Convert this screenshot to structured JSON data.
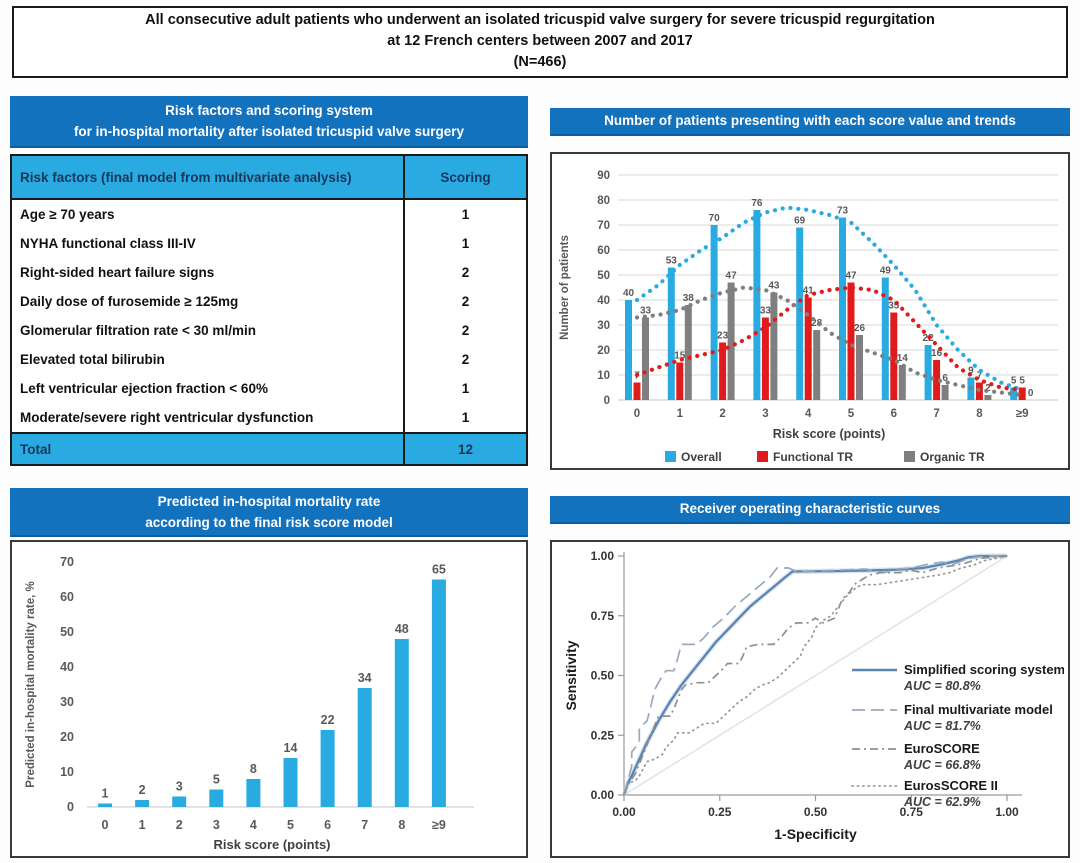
{
  "banner": {
    "line1": "All consecutive adult patients who underwent an isolated tricuspid valve surgery for severe tricuspid regurgitation",
    "line2": "at 12 French centers between 2007 and 2017",
    "line3": "(N=466)"
  },
  "risk_table": {
    "title_line1": "Risk factors  and scoring system",
    "title_line2": "for in-hospital mortality after isolated tricuspid valve surgery",
    "col1_header": "Risk factors (final model from multivariate analysis)",
    "col2_header": "Scoring",
    "rows": [
      {
        "factor": "Age ≥ 70 years",
        "score": "1"
      },
      {
        "factor": "NYHA functional class III-IV",
        "score": "1"
      },
      {
        "factor": "Right-sided heart failure signs",
        "score": "2"
      },
      {
        "factor": "Daily dose of furosemide ≥ 125mg",
        "score": "2"
      },
      {
        "factor": "Glomerular filtration rate < 30 ml/min",
        "score": "2"
      },
      {
        "factor": "Elevated total bilirubin",
        "score": "2"
      },
      {
        "factor": "Left ventricular ejection fraction < 60%",
        "score": "1"
      },
      {
        "factor": "Moderate/severe right ventricular dysfunction",
        "score": "1"
      }
    ],
    "total_label": "Total",
    "total_value": "12"
  },
  "colors": {
    "header_blue": "#1272be",
    "table_cyan": "#29abe2",
    "bar_blue": "#29abe2",
    "bar_red": "#e01b1b",
    "bar_gray": "#7f7f7f",
    "label_gray": "#595959",
    "roc_blue": "#5b84b1"
  },
  "chart_data": [
    {
      "id": "score-distribution",
      "type": "bar",
      "title": "Number of patients presenting with each score value and trends",
      "categories": [
        "0",
        "1",
        "2",
        "3",
        "4",
        "5",
        "6",
        "7",
        "8",
        "≥9"
      ],
      "series": [
        {
          "name": "Overall",
          "color": "#29abe2",
          "values": [
            40,
            53,
            70,
            76,
            69,
            73,
            49,
            22,
            9,
            5
          ],
          "trend": [
            [
              0,
              40
            ],
            [
              0.5,
              46
            ],
            [
              1,
              54
            ],
            [
              1.5,
              60
            ],
            [
              2,
              65
            ],
            [
              2.5,
              71
            ],
            [
              3,
              75
            ],
            [
              3.5,
              77
            ],
            [
              4,
              76
            ],
            [
              4.5,
              74
            ],
            [
              5,
              71
            ],
            [
              5.5,
              63
            ],
            [
              6,
              54
            ],
            [
              6.5,
              44
            ],
            [
              7,
              30
            ],
            [
              7.5,
              20
            ],
            [
              8,
              12
            ],
            [
              8.5,
              7
            ],
            [
              9,
              4
            ]
          ]
        },
        {
          "name": "Functional TR",
          "color": "#e01b1b",
          "values": [
            7,
            15,
            23,
            33,
            41,
            47,
            35,
            16,
            7,
            5
          ],
          "trend": [
            [
              0,
              10
            ],
            [
              0.5,
              13
            ],
            [
              1,
              16
            ],
            [
              1.5,
              18
            ],
            [
              2,
              20
            ],
            [
              2.5,
              24
            ],
            [
              3,
              29
            ],
            [
              3.5,
              36
            ],
            [
              4,
              42
            ],
            [
              4.5,
              44
            ],
            [
              5,
              45
            ],
            [
              5.5,
              44
            ],
            [
              6,
              40
            ],
            [
              6.5,
              31
            ],
            [
              7,
              22
            ],
            [
              7.5,
              13
            ],
            [
              8,
              8
            ],
            [
              8.5,
              5
            ],
            [
              9,
              4
            ]
          ]
        },
        {
          "name": "Organic TR",
          "color": "#7f7f7f",
          "values": [
            33,
            38,
            47,
            43,
            28,
            26,
            14,
            6,
            2,
            0
          ],
          "trend": [
            [
              0,
              33
            ],
            [
              0.5,
              34
            ],
            [
              1,
              36
            ],
            [
              1.5,
              40
            ],
            [
              2,
              43
            ],
            [
              2.5,
              45
            ],
            [
              3,
              44
            ],
            [
              3.5,
              40
            ],
            [
              4,
              34
            ],
            [
              4.5,
              27
            ],
            [
              5,
              22
            ],
            [
              5.5,
              19
            ],
            [
              6,
              16
            ],
            [
              6.5,
              11
            ],
            [
              7,
              8
            ],
            [
              7.5,
              6
            ],
            [
              8,
              4
            ],
            [
              8.5,
              3
            ],
            [
              9,
              2
            ]
          ]
        }
      ],
      "xlabel": "Risk score (points)",
      "ylabel": "Number of patients",
      "ylim": [
        0,
        90
      ],
      "ytick_step": 10,
      "grid": true,
      "legend_position": "bottom"
    },
    {
      "id": "predicted-mortality",
      "type": "bar",
      "title": "Predicted in-hospital mortality rate according to the final risk score model",
      "title_line1": "Predicted in-hospital mortality rate",
      "title_line2": "according to the final risk score model",
      "categories": [
        "0",
        "1",
        "2",
        "3",
        "4",
        "5",
        "6",
        "7",
        "8",
        "≥9"
      ],
      "values": [
        1,
        2,
        3,
        5,
        8,
        14,
        22,
        34,
        48,
        65
      ],
      "bar_color": "#29abe2",
      "xlabel": "Risk score (points)",
      "ylabel": "Predicted in-hospital mortality rate, %",
      "ylim": [
        0,
        70
      ],
      "ytick_step": 10,
      "grid": false
    },
    {
      "id": "roc-curves",
      "type": "line",
      "title": "Receiver operating characteristic curves",
      "xlabel": "1-Specificity",
      "ylabel": "Sensitivity",
      "xlim": [
        0,
        1
      ],
      "ylim": [
        0,
        1
      ],
      "tick_labels": [
        "0.00",
        "0.25",
        "0.50",
        "0.75",
        "1.00"
      ],
      "ticks": [
        0,
        0.25,
        0.5,
        0.75,
        1
      ],
      "diagonal": [
        [
          0,
          0
        ],
        [
          1,
          1
        ]
      ],
      "series": [
        {
          "name": "Simplified scoring system",
          "auc": "AUC = 80.8%",
          "style": "solid",
          "color": "#5b84b1",
          "points": [
            [
              0,
              0
            ],
            [
              0.01,
              0.05
            ],
            [
              0.02,
              0.08
            ],
            [
              0.04,
              0.15
            ],
            [
              0.06,
              0.22
            ],
            [
              0.09,
              0.31
            ],
            [
              0.12,
              0.39
            ],
            [
              0.15,
              0.46
            ],
            [
              0.18,
              0.52
            ],
            [
              0.21,
              0.58
            ],
            [
              0.24,
              0.64
            ],
            [
              0.27,
              0.69
            ],
            [
              0.3,
              0.74
            ],
            [
              0.33,
              0.79
            ],
            [
              0.36,
              0.83
            ],
            [
              0.39,
              0.87
            ],
            [
              0.42,
              0.91
            ],
            [
              0.44,
              0.935
            ],
            [
              0.55,
              0.937
            ],
            [
              0.65,
              0.94
            ],
            [
              0.72,
              0.943
            ],
            [
              0.78,
              0.95
            ],
            [
              0.83,
              0.965
            ],
            [
              0.87,
              0.98
            ],
            [
              0.9,
              0.995
            ],
            [
              0.93,
              1
            ],
            [
              1,
              1
            ]
          ]
        },
        {
          "name": "Final multivariate model",
          "auc": "AUC = 81.7%",
          "style": "longdash",
          "color": "#98a9bd",
          "points": [
            [
              0,
              0
            ],
            [
              0.01,
              0.06
            ],
            [
              0.02,
              0.12
            ],
            [
              0.02,
              0.18
            ],
            [
              0.04,
              0.22
            ],
            [
              0.04,
              0.28
            ],
            [
              0.06,
              0.31
            ],
            [
              0.07,
              0.37
            ],
            [
              0.08,
              0.44
            ],
            [
              0.09,
              0.47
            ],
            [
              0.1,
              0.5
            ],
            [
              0.11,
              0.52
            ],
            [
              0.13,
              0.52
            ],
            [
              0.14,
              0.57
            ],
            [
              0.15,
              0.63
            ],
            [
              0.19,
              0.63
            ],
            [
              0.21,
              0.66
            ],
            [
              0.23,
              0.7
            ],
            [
              0.26,
              0.74
            ],
            [
              0.29,
              0.79
            ],
            [
              0.32,
              0.83
            ],
            [
              0.35,
              0.87
            ],
            [
              0.38,
              0.91
            ],
            [
              0.4,
              0.95
            ],
            [
              0.43,
              0.95
            ],
            [
              0.45,
              0.935
            ],
            [
              0.55,
              0.94
            ],
            [
              0.63,
              0.945
            ],
            [
              0.68,
              0.93
            ],
            [
              0.71,
              0.945
            ],
            [
              0.75,
              0.95
            ],
            [
              0.79,
              0.965
            ],
            [
              0.83,
              0.975
            ],
            [
              0.86,
              0.965
            ],
            [
              0.89,
              0.985
            ],
            [
              0.92,
              0.995
            ],
            [
              0.95,
              1
            ],
            [
              1,
              1
            ]
          ]
        },
        {
          "name": "EuroSCORE",
          "auc": "AUC = 66.8%",
          "style": "dashdot",
          "color": "#8f8f8f",
          "points": [
            [
              0,
              0
            ],
            [
              0.01,
              0.04
            ],
            [
              0.03,
              0.09
            ],
            [
              0.04,
              0.13
            ],
            [
              0.05,
              0.17
            ],
            [
              0.06,
              0.21
            ],
            [
              0.07,
              0.25
            ],
            [
              0.08,
              0.29
            ],
            [
              0.09,
              0.33
            ],
            [
              0.12,
              0.33
            ],
            [
              0.13,
              0.36
            ],
            [
              0.14,
              0.4
            ],
            [
              0.15,
              0.44
            ],
            [
              0.16,
              0.46
            ],
            [
              0.19,
              0.47
            ],
            [
              0.22,
              0.47
            ],
            [
              0.24,
              0.5
            ],
            [
              0.26,
              0.53
            ],
            [
              0.27,
              0.55
            ],
            [
              0.3,
              0.55
            ],
            [
              0.31,
              0.58
            ],
            [
              0.32,
              0.62
            ],
            [
              0.35,
              0.63
            ],
            [
              0.39,
              0.63
            ],
            [
              0.41,
              0.66
            ],
            [
              0.43,
              0.7
            ],
            [
              0.45,
              0.72
            ],
            [
              0.48,
              0.72
            ],
            [
              0.5,
              0.74
            ],
            [
              0.52,
              0.72
            ],
            [
              0.55,
              0.74
            ],
            [
              0.56,
              0.78
            ],
            [
              0.57,
              0.82
            ],
            [
              0.59,
              0.85
            ],
            [
              0.6,
              0.88
            ],
            [
              0.62,
              0.9
            ],
            [
              0.64,
              0.92
            ],
            [
              0.67,
              0.93
            ],
            [
              0.72,
              0.93
            ],
            [
              0.75,
              0.94
            ],
            [
              0.78,
              0.93
            ],
            [
              0.82,
              0.95
            ],
            [
              0.86,
              0.96
            ],
            [
              0.89,
              0.97
            ],
            [
              0.93,
              0.99
            ],
            [
              1,
              1
            ]
          ]
        },
        {
          "name": "EurosSCORE II",
          "auc": "AUC = 62.9%",
          "style": "dotted",
          "color": "#999999",
          "points": [
            [
              0,
              0
            ],
            [
              0.01,
              0.05
            ],
            [
              0.03,
              0.06
            ],
            [
              0.04,
              0.08
            ],
            [
              0.05,
              0.11
            ],
            [
              0.06,
              0.14
            ],
            [
              0.08,
              0.15
            ],
            [
              0.1,
              0.17
            ],
            [
              0.11,
              0.2
            ],
            [
              0.13,
              0.23
            ],
            [
              0.14,
              0.26
            ],
            [
              0.17,
              0.26
            ],
            [
              0.19,
              0.28
            ],
            [
              0.21,
              0.3
            ],
            [
              0.24,
              0.3
            ],
            [
              0.26,
              0.33
            ],
            [
              0.28,
              0.36
            ],
            [
              0.3,
              0.39
            ],
            [
              0.32,
              0.41
            ],
            [
              0.34,
              0.44
            ],
            [
              0.36,
              0.46
            ],
            [
              0.38,
              0.47
            ],
            [
              0.4,
              0.49
            ],
            [
              0.42,
              0.52
            ],
            [
              0.44,
              0.55
            ],
            [
              0.46,
              0.58
            ],
            [
              0.47,
              0.62
            ],
            [
              0.49,
              0.66
            ],
            [
              0.5,
              0.7
            ],
            [
              0.52,
              0.73
            ],
            [
              0.54,
              0.75
            ],
            [
              0.56,
              0.79
            ],
            [
              0.58,
              0.83
            ],
            [
              0.6,
              0.86
            ],
            [
              0.62,
              0.88
            ],
            [
              0.66,
              0.88
            ],
            [
              0.7,
              0.89
            ],
            [
              0.74,
              0.9
            ],
            [
              0.78,
              0.91
            ],
            [
              0.82,
              0.92
            ],
            [
              0.85,
              0.93
            ],
            [
              0.88,
              0.95
            ],
            [
              0.91,
              0.96
            ],
            [
              0.94,
              0.98
            ],
            [
              0.97,
              0.99
            ],
            [
              1,
              1
            ]
          ]
        }
      ],
      "legend_position": "inside-right"
    }
  ]
}
